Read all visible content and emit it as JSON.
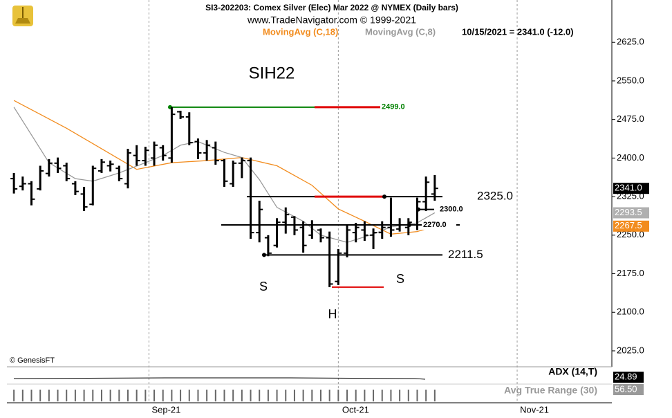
{
  "chart_data": {
    "type": "ohlc",
    "title": "SI3-202203:  Comex Silver (Elec) Mar 2022 @ NYMEX  (Daily bars)",
    "subtitle": "www.TradeNavigator.com © 1999-2021",
    "status": "10/15/2021 = 2341.0 (-12.0)",
    "copyright": "© GenesisFT",
    "xlim": [
      -0.8,
      68.2
    ],
    "xticks": [
      {
        "value": 15.4,
        "label": "Sep-21"
      },
      {
        "value": 37,
        "label": "Oct-21"
      },
      {
        "value": 57.4,
        "label": "Nov-21"
      }
    ],
    "ylim": [
      1994,
      2667
    ],
    "yticks": [
      {
        "value": 2025,
        "label": "2025.0"
      },
      {
        "value": 2100,
        "label": "2100.0"
      },
      {
        "value": 2175,
        "label": "2175.0"
      },
      {
        "value": 2250,
        "label": "2250.0"
      },
      {
        "value": 2325,
        "label": "2325.0"
      },
      {
        "value": 2400,
        "label": "2400.0"
      },
      {
        "value": 2475,
        "label": "2475.0"
      },
      {
        "value": 2550,
        "label": "2550.0"
      },
      {
        "value": 2625,
        "label": "2625.0"
      }
    ],
    "color": "#000000",
    "open": [
      2360,
      2345,
      2350,
      2340,
      2370,
      2390,
      2385,
      2350,
      2330,
      2310,
      2375,
      2385,
      2380,
      2350,
      2405,
      2395,
      2400,
      2420,
      2400,
      2490,
      2480,
      2432,
      2410,
      2420,
      2395,
      2350,
      2390,
      2395,
      2255,
      2245,
      2230,
      2275,
      2285,
      2265,
      2250,
      2260,
      2245,
      2160,
      2215,
      2255,
      2260,
      2250,
      2255,
      2265,
      2262,
      2265,
      2270,
      2315,
      2330
    ],
    "high": [
      2371,
      2364,
      2355,
      2385,
      2398,
      2401,
      2391,
      2355,
      2344,
      2385,
      2398,
      2395,
      2385,
      2418,
      2425,
      2422,
      2432,
      2425,
      2499,
      2492,
      2489,
      2438,
      2435,
      2432,
      2398,
      2395,
      2401,
      2401,
      2317,
      2250,
      2283,
      2304,
      2287,
      2277,
      2279,
      2263,
      2257,
      2223,
      2270,
      2274,
      2277,
      2263,
      2277,
      2323,
      2283,
      2283,
      2323,
      2364,
      2367
    ],
    "low": [
      2331,
      2337,
      2308,
      2337,
      2364,
      2371,
      2355,
      2328,
      2297,
      2308,
      2371,
      2374,
      2355,
      2341,
      2385,
      2385,
      2385,
      2395,
      2391,
      2476,
      2425,
      2398,
      2395,
      2387,
      2344,
      2344,
      2361,
      2243,
      2236,
      2209,
      2226,
      2253,
      2250,
      2216,
      2243,
      2236,
      2149,
      2153,
      2207,
      2236,
      2239,
      2223,
      2243,
      2247,
      2257,
      2250,
      2260,
      2297,
      2317
    ],
    "close": [
      2340,
      2350,
      2320,
      2375,
      2390,
      2380,
      2360,
      2335,
      2305,
      2380,
      2392,
      2388,
      2360,
      2410,
      2395,
      2415,
      2425,
      2405,
      2485,
      2480,
      2430,
      2410,
      2425,
      2395,
      2355,
      2390,
      2395,
      2255,
      2300,
      2215,
      2275,
      2290,
      2260,
      2230,
      2270,
      2245,
      2155,
      2215,
      2260,
      2265,
      2250,
      2255,
      2265,
      2260,
      2270,
      2275,
      2315,
      2353,
      2341
    ],
    "series": [
      {
        "name": "MovingAvg (C,18)",
        "color": "#f28c1e",
        "x": [
          0,
          3,
          6,
          10,
          14,
          18,
          22,
          26,
          30,
          34,
          37,
          40,
          43,
          46,
          48
        ],
        "values": [
          2512,
          2485,
          2458,
          2418,
          2378,
          2391,
          2395,
          2401,
          2385,
          2347,
          2301,
          2277,
          2252,
          2257,
          2267.5
        ]
      },
      {
        "name": "MovingAvg (C,8)",
        "color": "#999999",
        "x": [
          0,
          2,
          4,
          7,
          9,
          12,
          15,
          17,
          19,
          21,
          24,
          26,
          28,
          30,
          33,
          35,
          38,
          41,
          43,
          46,
          48
        ],
        "values": [
          2499,
          2445,
          2391,
          2360,
          2355,
          2371,
          2391,
          2405,
          2425,
          2432,
          2411,
          2401,
          2358,
          2304,
          2277,
          2250,
          2236,
          2252,
          2266,
          2274,
          2293.5
        ]
      }
    ],
    "last_labels": [
      {
        "value": 2341,
        "label": "2341.0",
        "color": "#000000"
      },
      {
        "value": 2293.5,
        "label": "2293.5",
        "color": "#b0b0b0"
      },
      {
        "value": 2267.5,
        "label": "2267.5",
        "color": "#f28c1e"
      }
    ],
    "levels": [
      {
        "value": 2499,
        "label": "2499.0"
      },
      {
        "value": 2325,
        "label": "2325.0"
      },
      {
        "value": 2300,
        "label": "2300.0"
      },
      {
        "value": 2270,
        "label": "2270.0"
      },
      {
        "value": 2211.5,
        "label": "2211.5"
      },
      {
        "value": 2149
      }
    ],
    "texts": [
      "SIH22",
      "S",
      "H",
      "S"
    ],
    "indicators": [
      {
        "name": "ADX (14,T)",
        "value_label": "24.89",
        "color": "#000000"
      },
      {
        "name": "Avg True Range (30)",
        "value_label": "56.50",
        "color": "#999999"
      }
    ]
  }
}
